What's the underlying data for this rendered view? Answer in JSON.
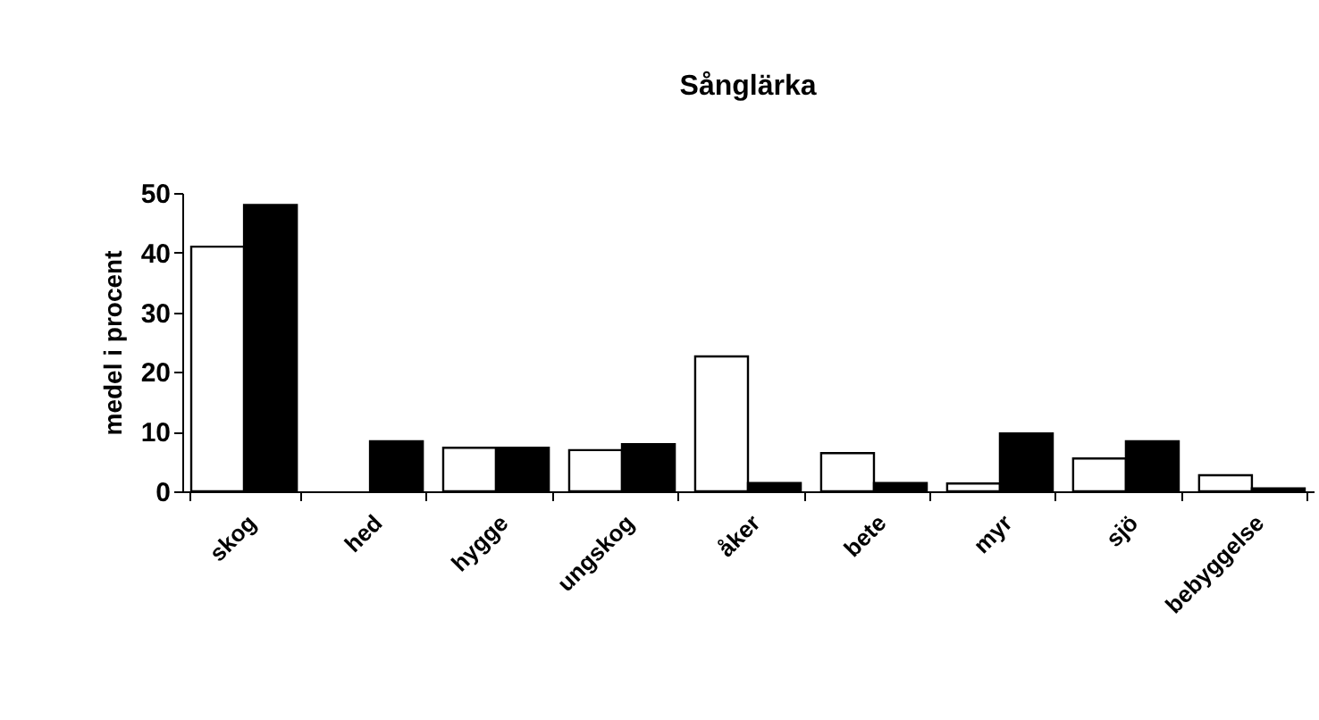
{
  "chart_data": {
    "type": "bar",
    "title": "Sånglärka",
    "ylabel": "medel i procent",
    "categories": [
      "skog",
      "hed",
      "hygge",
      "ungskog",
      "åker",
      "bete",
      "myr",
      "sjö",
      "bebyggelse"
    ],
    "series": [
      {
        "color": "#ffffff",
        "values": [
          41,
          null,
          7.3,
          6.9,
          22.6,
          6.4,
          1.3,
          5.5,
          2.7
        ]
      },
      {
        "color": "#000000",
        "values": [
          48,
          8.4,
          7.3,
          7.9,
          1.4,
          1.4,
          9.7,
          8.4,
          0.5
        ]
      }
    ],
    "ylim": [
      0,
      50
    ],
    "yticks": [
      0,
      10,
      20,
      30,
      40,
      50
    ],
    "grid": false,
    "legend": false
  }
}
